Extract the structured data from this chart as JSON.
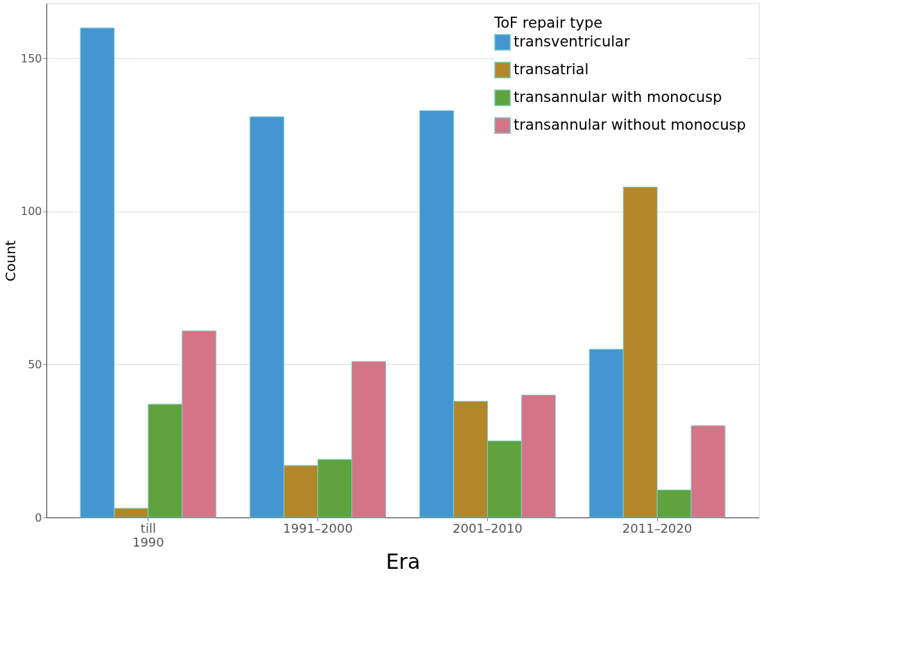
{
  "chart_data": {
    "type": "bar",
    "xlabel": "Era",
    "ylabel": "Count",
    "legend_title": "ToF repair type",
    "legend": "top right",
    "grid": "y",
    "categories": [
      "till 1990",
      "1991–2000",
      "2001–2010",
      "2011–2020"
    ],
    "ylim": [
      0,
      168
    ],
    "yticks": [
      0,
      50,
      100,
      150
    ],
    "series": [
      {
        "name": "transventricular",
        "color": "#4496d3",
        "values": [
          160,
          131,
          133,
          55
        ]
      },
      {
        "name": "transatrial",
        "color": "#b0882a",
        "values": [
          3,
          17,
          38,
          108
        ]
      },
      {
        "name": "transannular with monocusp",
        "color": "#5fa33e",
        "values": [
          37,
          19,
          25,
          9
        ]
      },
      {
        "name": "transannular without monocusp",
        "color": "#d67487",
        "values": [
          61,
          51,
          40,
          30
        ]
      }
    ]
  }
}
